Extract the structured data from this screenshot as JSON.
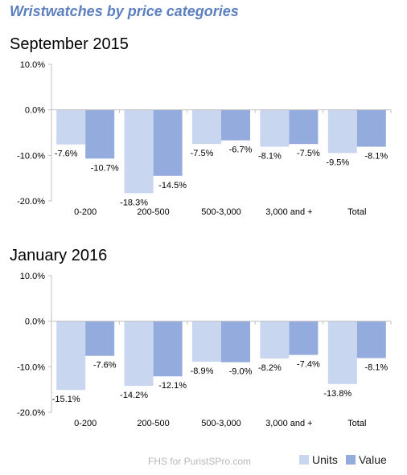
{
  "header": {
    "title": "Wristwatches by price categories"
  },
  "credit": "FHS for PuristSPro.com",
  "colors": {
    "units": "#c8d6ef",
    "value": "#94abdd",
    "axis": "#bfbfbf"
  },
  "chart_data": [
    {
      "type": "bar",
      "title": "September 2015",
      "categories": [
        "0-200",
        "200-500",
        "500-3,000",
        "3,000 and +",
        "Total"
      ],
      "series": [
        {
          "name": "Units",
          "values": [
            -7.6,
            -18.3,
            -7.5,
            -8.1,
            -9.5
          ]
        },
        {
          "name": "Value",
          "values": [
            -10.7,
            -14.5,
            -6.7,
            -7.5,
            -8.1
          ]
        }
      ],
      "ylim": [
        -20,
        10
      ],
      "yticks": [
        "10.0%",
        "0.0%",
        "-10.0%",
        "-20.0%"
      ],
      "ytick_values": [
        10,
        0,
        -10,
        -20
      ],
      "legend": "bottom-right"
    },
    {
      "type": "bar",
      "title": "January 2016",
      "categories": [
        "0-200",
        "200-500",
        "500-3,000",
        "3,000 and +",
        "Total"
      ],
      "series": [
        {
          "name": "Units",
          "values": [
            -15.1,
            -14.2,
            -8.9,
            -8.2,
            -13.8
          ]
        },
        {
          "name": "Value",
          "values": [
            -7.6,
            -12.1,
            -9.0,
            -7.4,
            -8.1
          ]
        }
      ],
      "ylim": [
        -20,
        10
      ],
      "yticks": [
        "10.0%",
        "0.0%",
        "-10.0%",
        "-20.0%"
      ],
      "ytick_values": [
        10,
        0,
        -10,
        -20
      ],
      "legend": "bottom-right"
    }
  ]
}
